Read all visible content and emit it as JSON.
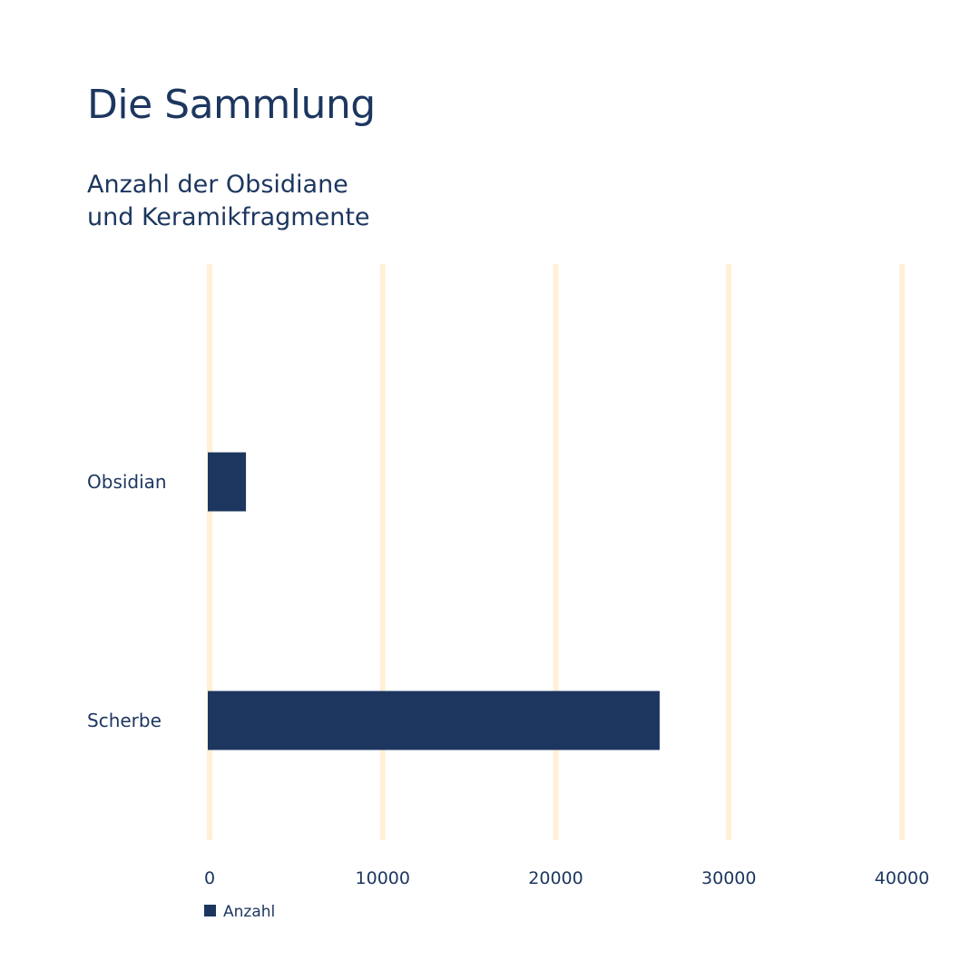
{
  "page": {
    "title": "Die Sammlung",
    "subtitle_lines": [
      "Anzahl der Obsidiane",
      "und Keramikfragmente"
    ]
  },
  "colors": {
    "bar": "#1c365f",
    "grid": "#fff0d6",
    "text": "#1c365f"
  },
  "chart_data": {
    "type": "bar",
    "orientation": "horizontal",
    "title": "Anzahl der Obsidiane und Keramikfragmente",
    "categories": [
      "Obsidian",
      "Scherbe"
    ],
    "series": [
      {
        "name": "Anzahl",
        "values": [
          2100,
          26000
        ]
      }
    ],
    "xlim": [
      0,
      40000
    ],
    "xticks": [
      0,
      10000,
      20000,
      30000,
      40000
    ],
    "tick_labels": [
      "0",
      "10000",
      "20000",
      "30000",
      "40000"
    ],
    "grid": true,
    "legend": "bottom-left"
  }
}
